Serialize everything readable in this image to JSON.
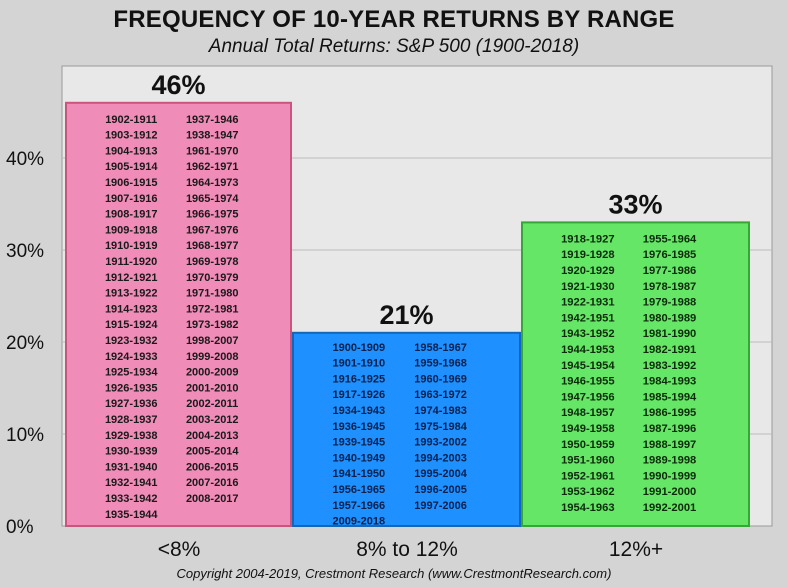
{
  "chart_data": {
    "type": "bar",
    "title": "FREQUENCY OF 10-YEAR RETURNS BY RANGE",
    "subtitle": "Annual Total Returns: S&P 500  (1900-2018)",
    "categories": [
      "<8%",
      "8%  to  12%",
      "12%+"
    ],
    "values": [
      46,
      21,
      33
    ],
    "value_labels": [
      "46%",
      "21%",
      "33%"
    ],
    "ylim": [
      0,
      50
    ],
    "y_ticks": [
      0,
      10,
      20,
      30,
      40
    ],
    "y_tick_labels": [
      "0%",
      "10%",
      "20%",
      "30%",
      "40%"
    ],
    "grid": true,
    "colors": [
      "#f08cb8",
      "#1e90ff",
      "#66e666"
    ],
    "bar_periods": [
      {
        "left": [
          "1902-1911",
          "1903-1912",
          "1904-1913",
          "1905-1914",
          "1906-1915",
          "1907-1916",
          "1908-1917",
          "1909-1918",
          "1910-1919",
          "1911-1920",
          "1912-1921",
          "1913-1922",
          "1914-1923",
          "1915-1924",
          "1923-1932",
          "1924-1933",
          "1925-1934",
          "1926-1935",
          "1927-1936",
          "1928-1937",
          "1929-1938",
          "1930-1939",
          "1931-1940",
          "1932-1941",
          "1933-1942",
          "1935-1944"
        ],
        "right": [
          "1937-1946",
          "1938-1947",
          "1961-1970",
          "1962-1971",
          "1964-1973",
          "1965-1974",
          "1966-1975",
          "1967-1976",
          "1968-1977",
          "1969-1978",
          "1970-1979",
          "1971-1980",
          "1972-1981",
          "1973-1982",
          "1998-2007",
          "1999-2008",
          "2000-2009",
          "2001-2010",
          "2002-2011",
          "2003-2012",
          "2004-2013",
          "2005-2014",
          "2006-2015",
          "2007-2016",
          "2008-2017"
        ]
      },
      {
        "left": [
          "1900-1909",
          "1901-1910",
          "1916-1925",
          "1917-1926",
          "1934-1943",
          "1936-1945",
          "1939-1945",
          "1940-1949",
          "1941-1950",
          "1956-1965",
          "1957-1966",
          "2009-2018"
        ],
        "right": [
          "1958-1967",
          "1959-1968",
          "1960-1969",
          "1963-1972",
          "1974-1983",
          "1975-1984",
          "1993-2002",
          "1994-2003",
          "1995-2004",
          "1996-2005",
          "1997-2006"
        ]
      },
      {
        "left": [
          "1918-1927",
          "1919-1928",
          "1920-1929",
          "1921-1930",
          "1922-1931",
          "1942-1951",
          "1943-1952",
          "1944-1953",
          "1945-1954",
          "1946-1955",
          "1947-1956",
          "1948-1957",
          "1949-1958",
          "1950-1959",
          "1951-1960",
          "1952-1961",
          "1953-1962",
          "1954-1963"
        ],
        "right": [
          "1955-1964",
          "1976-1985",
          "1977-1986",
          "1978-1987",
          "1979-1988",
          "1980-1989",
          "1981-1990",
          "1982-1991",
          "1983-1992",
          "1984-1993",
          "1985-1994",
          "1986-1995",
          "1987-1996",
          "1988-1997",
          "1989-1998",
          "1990-1999",
          "1991-2000",
          "1992-2001"
        ]
      }
    ],
    "copyright": "Copyright 2004-2019, Crestmont Research (www.CrestmontResearch.com)"
  }
}
